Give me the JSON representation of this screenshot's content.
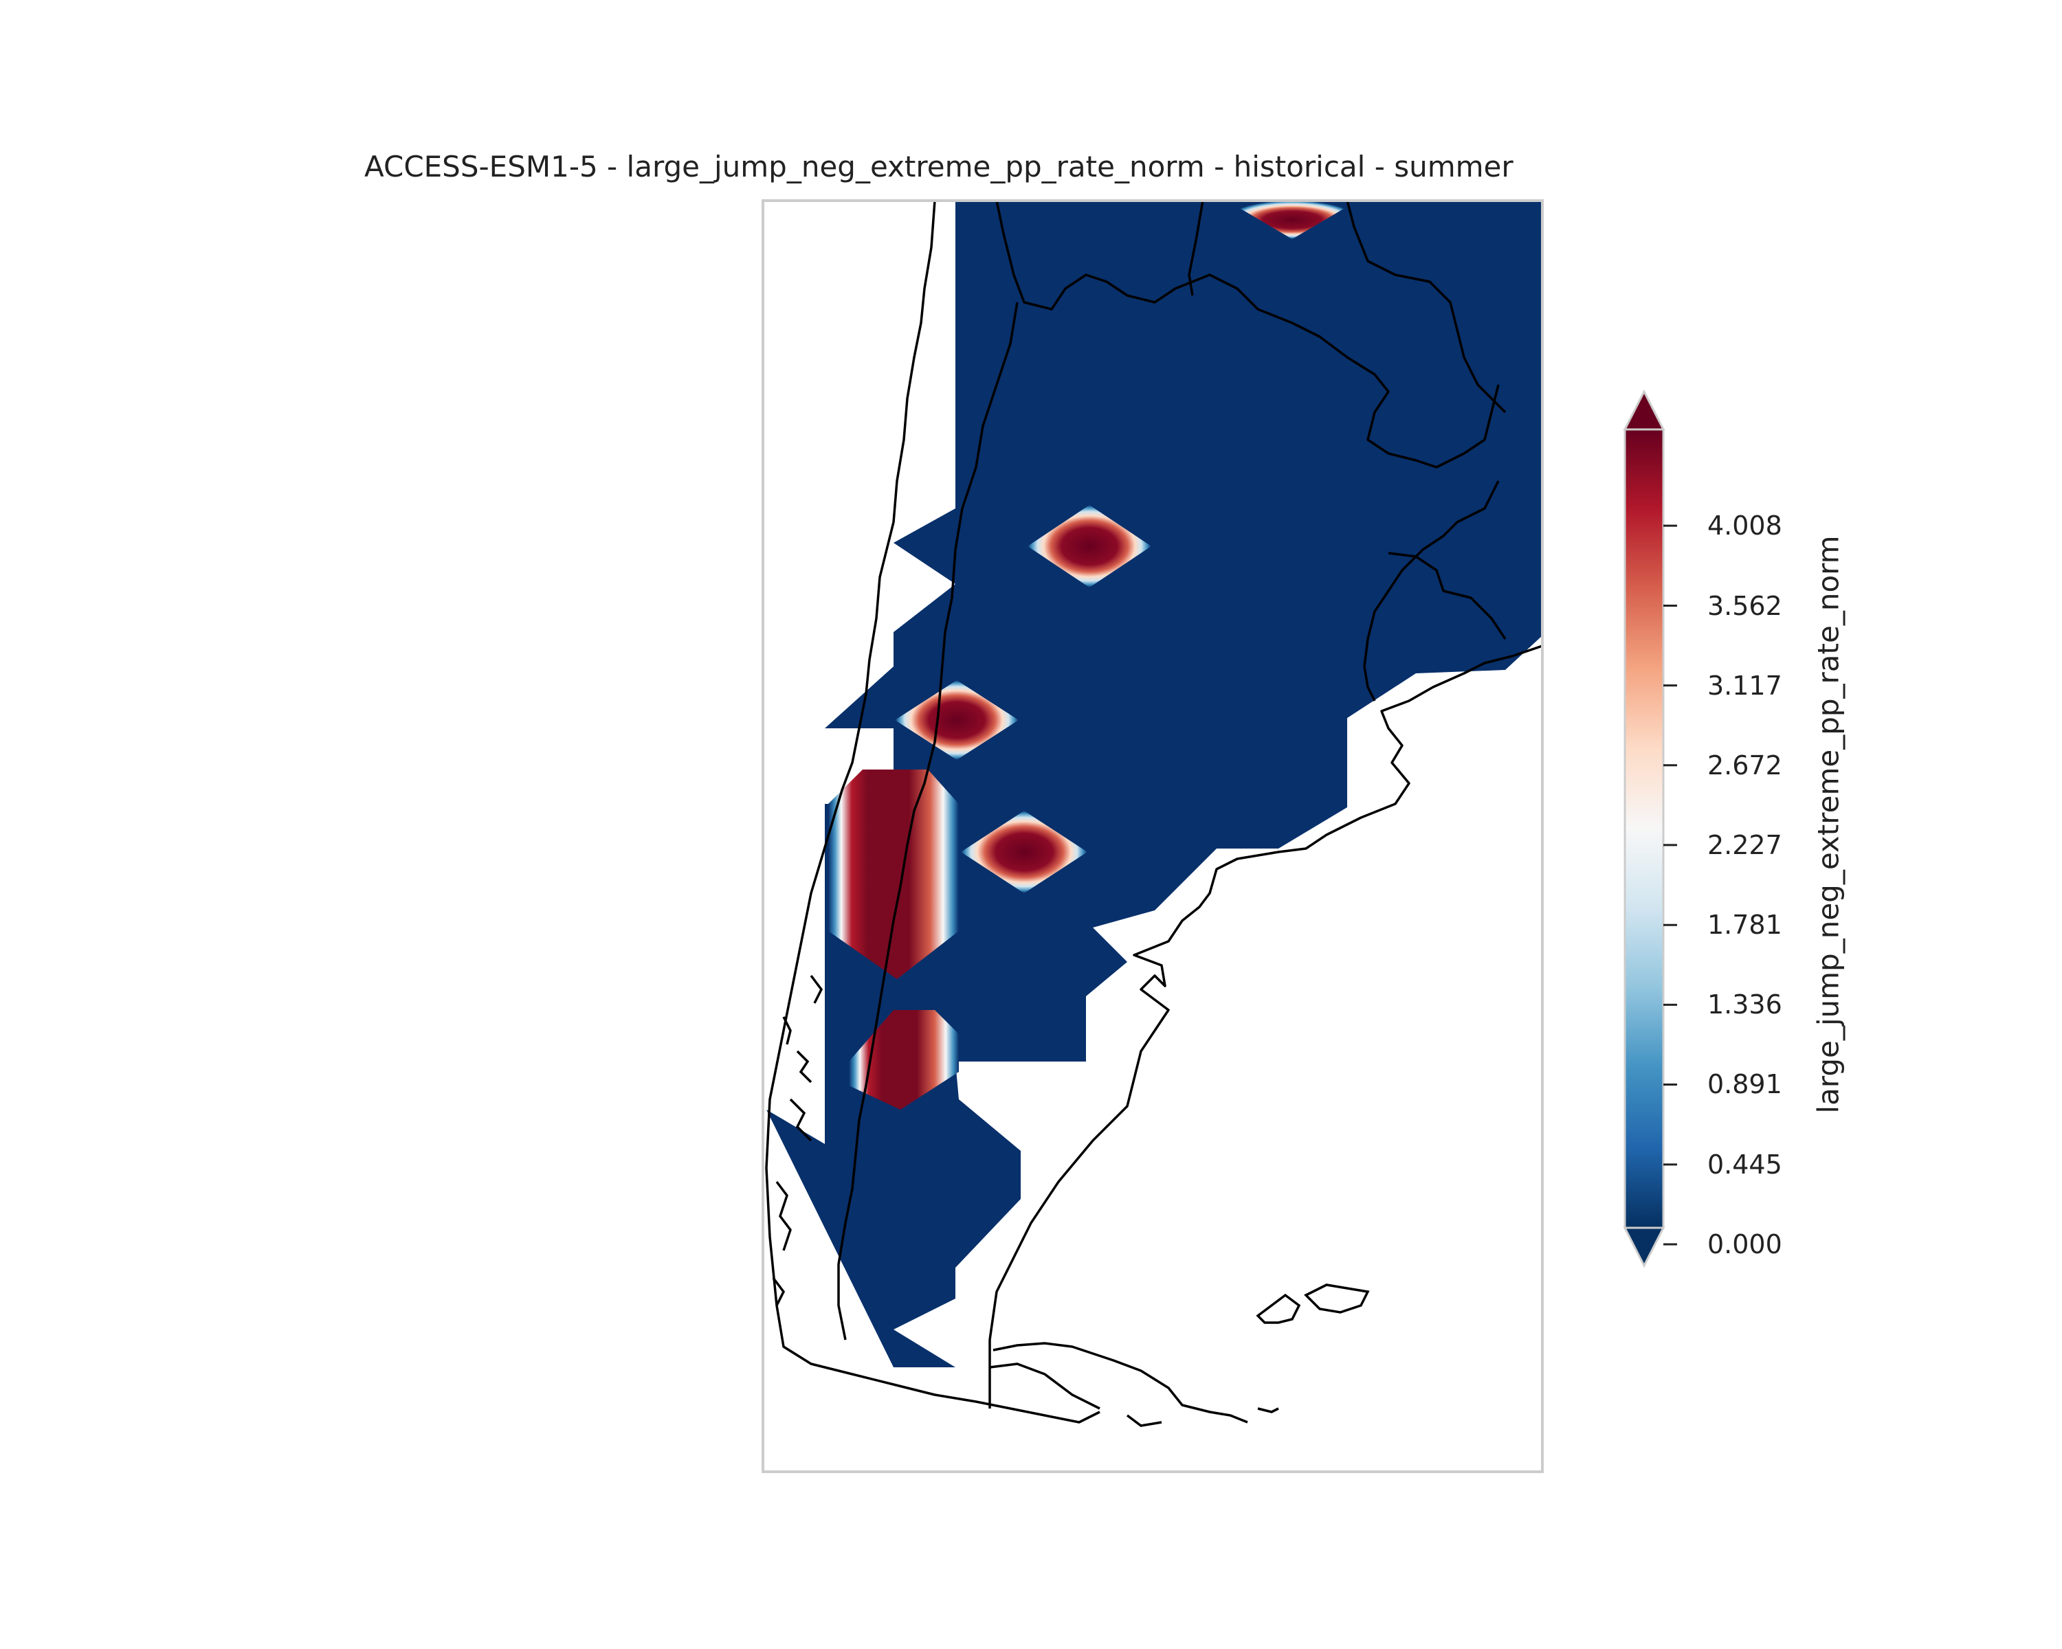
{
  "title": "ACCESS-ESM1-5 - large_jump_neg_extreme_pp_rate_norm - historical - summer",
  "colorbar": {
    "label": "large_jump_neg_extreme_pp_rate_norm",
    "ticks": [
      "0.000",
      "0.445",
      "0.891",
      "1.336",
      "1.781",
      "2.227",
      "2.672",
      "3.117",
      "3.562",
      "4.008"
    ],
    "tick_values": [
      0.0,
      0.445,
      0.891,
      1.336,
      1.781,
      2.227,
      2.672,
      3.117,
      3.562,
      4.008
    ],
    "extend": "both",
    "colormap": "RdBu_r",
    "colors": [
      "#053061",
      "#2166ac",
      "#4393c3",
      "#92c5de",
      "#d1e5f0",
      "#f7f7f7",
      "#fddbc7",
      "#f4a582",
      "#d6604d",
      "#b2182b",
      "#67001f"
    ]
  },
  "map": {
    "region": "Southern South America (Argentina, Chile)",
    "background_value_color": "#08306b",
    "hotspots": [
      {
        "name": "central-north",
        "value": 4.4
      },
      {
        "name": "west-central",
        "value": 4.4
      },
      {
        "name": "central",
        "value": 4.4
      },
      {
        "name": "andes-block",
        "value": 4.4
      },
      {
        "name": "south-andes",
        "value": 4.4
      },
      {
        "name": "north-edge",
        "value": 4.4
      }
    ]
  }
}
